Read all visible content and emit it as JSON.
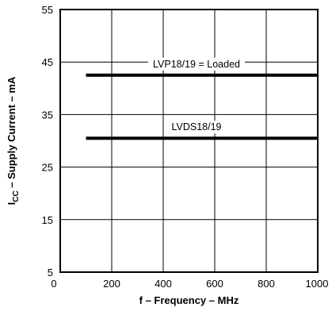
{
  "chart_data": {
    "type": "line",
    "title": "",
    "xlabel": "f – Frequency – MHz",
    "ylabel": {
      "prefix": "I",
      "subscript": "CC",
      "rest": " – Supply Current – mA"
    },
    "xlim": [
      0,
      1000
    ],
    "ylim": [
      5,
      55
    ],
    "x_ticks": [
      0,
      200,
      400,
      600,
      800,
      1000
    ],
    "y_ticks": [
      5,
      15,
      25,
      35,
      45,
      55
    ],
    "grid": true,
    "series": [
      {
        "name": "LVP18/19 = Loaded",
        "x": [
          100,
          1000
        ],
        "y": [
          42.5,
          42.5
        ]
      },
      {
        "name": "LVDS18/19",
        "x": [
          100,
          1000
        ],
        "y": [
          30.5,
          30.5
        ]
      }
    ]
  }
}
